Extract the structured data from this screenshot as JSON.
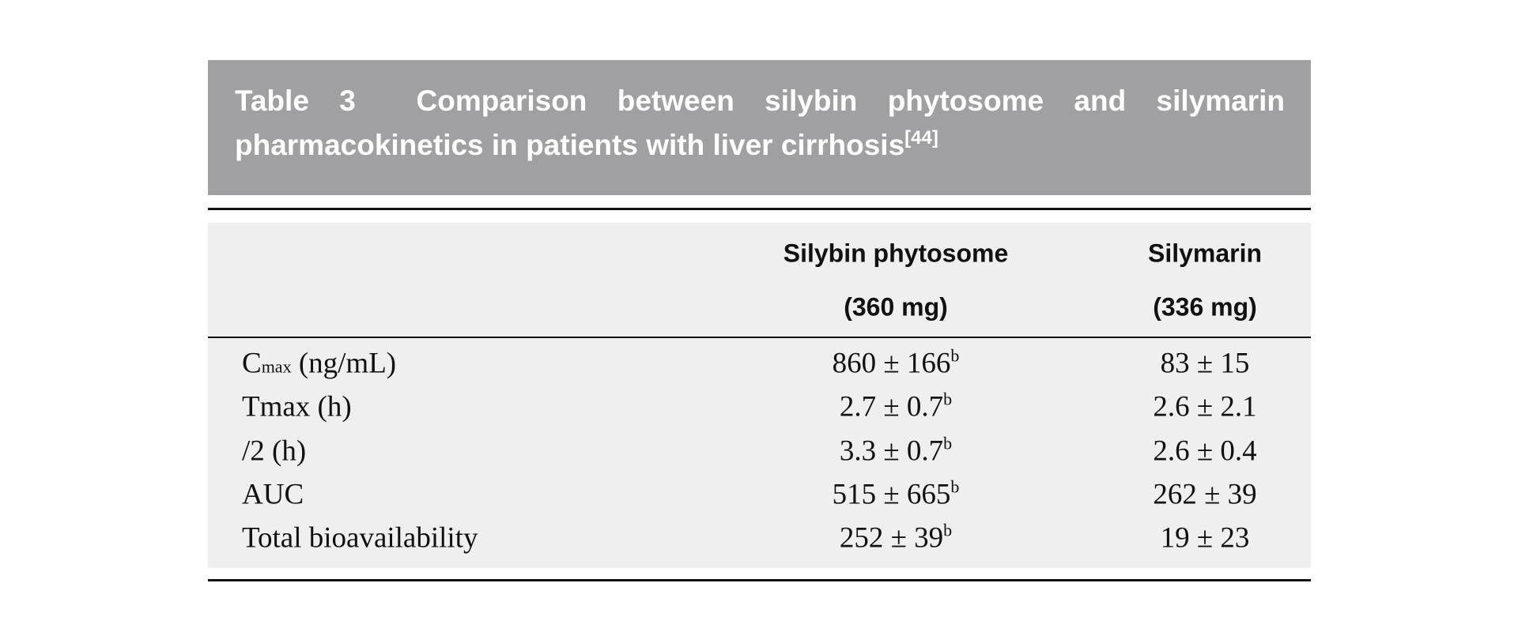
{
  "caption": {
    "label": "Table 3",
    "text": "Comparison between silybin phytosome and silymarin pharmacokinetics in patients with liver cirrhosis",
    "ref": "[44]"
  },
  "table": {
    "columns": [
      {
        "name": "Silybin phytosome",
        "dose": "(360 mg)"
      },
      {
        "name": "Silymarin",
        "dose": "(336 mg)"
      }
    ],
    "rows": [
      {
        "label": "C",
        "label_small": "max",
        "label_rest": "(ng/mL)",
        "cells": [
          {
            "text": "860 ± 166",
            "note": "b"
          },
          {
            "text": "83 ± 15"
          }
        ]
      },
      {
        "label": "Tmax (h)",
        "cells": [
          {
            "text": "2.7 ± 0.7",
            "note": "b"
          },
          {
            "text": "2.6 ± 2.1"
          }
        ]
      },
      {
        "label": "/2 (h)",
        "cells": [
          {
            "text": "3.3 ± 0.7",
            "note": "b"
          },
          {
            "text": "2.6 ± 0.4"
          }
        ]
      },
      {
        "label": "AUC",
        "cells": [
          {
            "text": "515 ± 665",
            "note": "b"
          },
          {
            "text": "262 ± 39"
          }
        ]
      },
      {
        "label": "Total bioavailability",
        "cells": [
          {
            "text": "252 ± 39",
            "note": "b"
          },
          {
            "text": "19 ± 23"
          }
        ]
      }
    ]
  }
}
